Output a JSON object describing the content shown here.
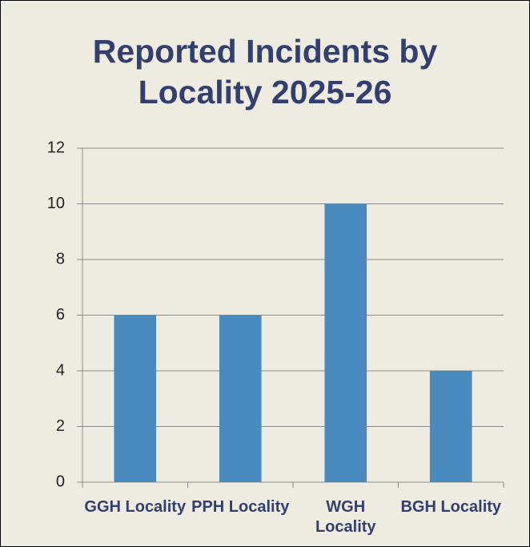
{
  "chart_data": {
    "type": "bar",
    "title": "Reported Incidents by Locality 2025-26",
    "categories": [
      "GGH Locality",
      "PPH Locality",
      "WGH Locality",
      "BGH Locality"
    ],
    "values": [
      6,
      6,
      10,
      4
    ],
    "color": "#4a8bbf",
    "ylim": [
      0,
      12
    ],
    "yticks": [
      0,
      2,
      4,
      6,
      8,
      10,
      12
    ],
    "grid": true
  }
}
